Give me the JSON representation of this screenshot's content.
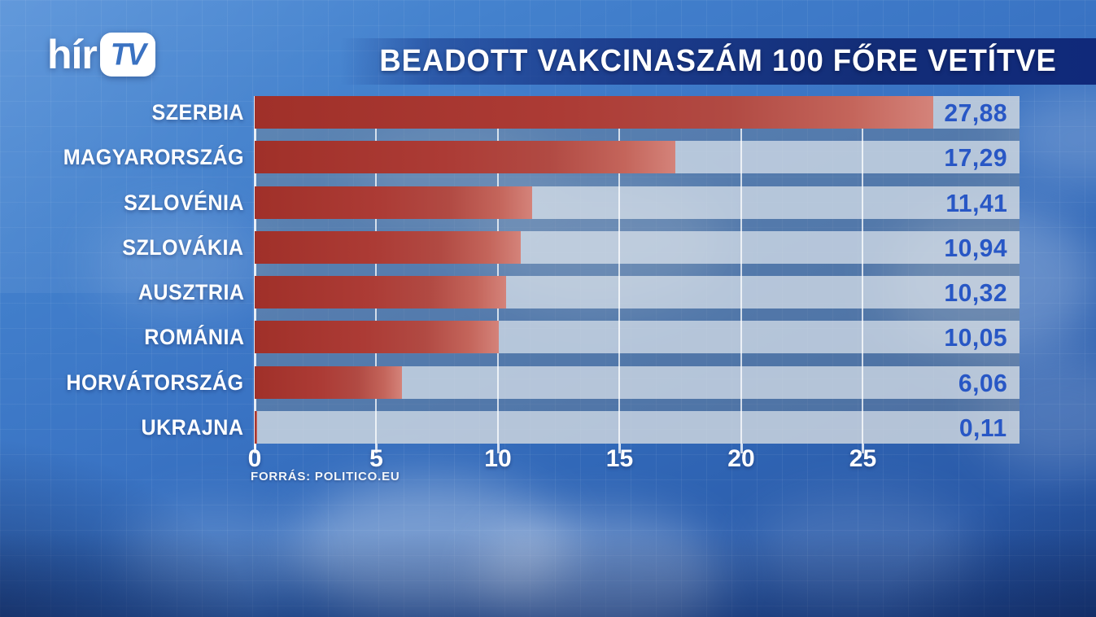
{
  "brand": {
    "logo_text": "hír",
    "logo_badge": "TV"
  },
  "header": {
    "title": "BEADOTT VAKCINASZÁM 100 FŐRE VETÍTVE"
  },
  "chart_data": {
    "type": "bar",
    "orientation": "horizontal",
    "title": "BEADOTT VAKCINASZÁM 100 FŐRE VETÍTVE",
    "categories": [
      "SZERBIA",
      "MAGYARORSZÁG",
      "SZLOVÉNIA",
      "SZLOVÁKIA",
      "AUSZTRIA",
      "ROMÁNIA",
      "HORVÁTORSZÁG",
      "UKRAJNA"
    ],
    "values": [
      27.88,
      17.29,
      11.41,
      10.94,
      10.32,
      10.05,
      6.06,
      0.11
    ],
    "value_labels": [
      "27,88",
      "17,29",
      "11,41",
      "10,94",
      "10,32",
      "10,05",
      "6,06",
      "0,11"
    ],
    "axis_ticks": [
      0,
      5,
      10,
      15,
      20,
      25
    ],
    "axis_tick_labels": [
      "0",
      "5",
      "10",
      "15",
      "20",
      "25"
    ],
    "xlim": [
      0,
      31.44
    ],
    "grid": true,
    "legend": false,
    "source": "FORRÁS: POLITICO.EU",
    "colors": {
      "bar_start": "#a03029",
      "bar_end": "#d4837a",
      "value_text": "#2857c5",
      "track": "#c3ccd4",
      "label_text": "#ffffff",
      "banner": "#10297a"
    }
  }
}
